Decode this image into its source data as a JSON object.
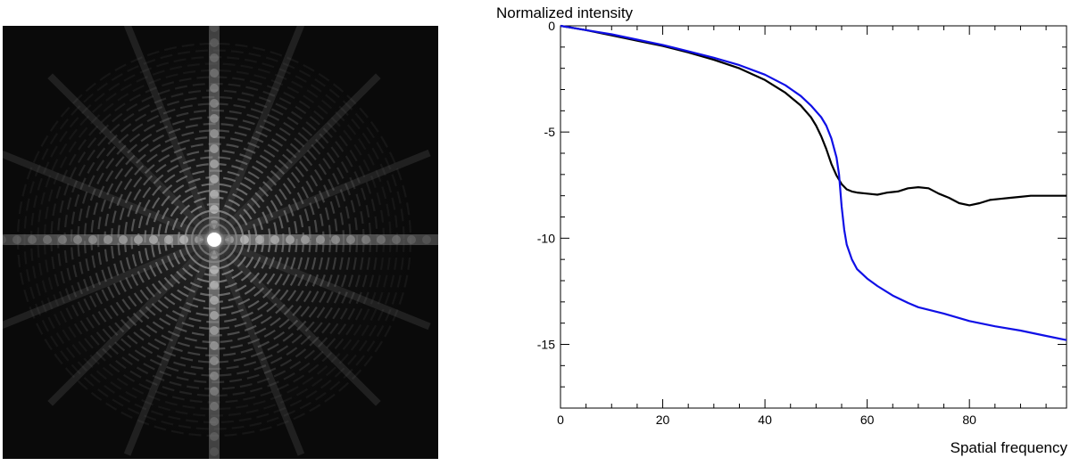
{
  "psf_image": {
    "description_icon": "diffraction-pattern-image",
    "background_color": "#0a0a0a",
    "core_color": "#ffffff"
  },
  "chart_data": {
    "type": "line",
    "xlabel": "Spatial frequency",
    "ylabel": "Normalized intensity",
    "xlim": [
      0,
      99
    ],
    "ylim": [
      -18,
      0
    ],
    "x_ticks": [
      0,
      20,
      40,
      60,
      80
    ],
    "y_ticks": [
      0,
      -5,
      -10,
      -15
    ],
    "grid": false,
    "series": [
      {
        "color": "#000000",
        "x": [
          0,
          5,
          10,
          15,
          20,
          25,
          30,
          35,
          40,
          44,
          47,
          49,
          50,
          51,
          52,
          53,
          54,
          55,
          56,
          57,
          58,
          60,
          62,
          64,
          66,
          68,
          70,
          72,
          74,
          76,
          78,
          80,
          82,
          84,
          86,
          88,
          90,
          92,
          94,
          96,
          99
        ],
        "y": [
          0,
          -0.2,
          -0.45,
          -0.7,
          -0.95,
          -1.25,
          -1.6,
          -2.0,
          -2.55,
          -3.15,
          -3.75,
          -4.3,
          -4.7,
          -5.2,
          -5.8,
          -6.5,
          -7.05,
          -7.45,
          -7.7,
          -7.8,
          -7.85,
          -7.9,
          -7.95,
          -7.85,
          -7.8,
          -7.65,
          -7.6,
          -7.65,
          -7.9,
          -8.1,
          -8.35,
          -8.45,
          -8.35,
          -8.2,
          -8.15,
          -8.1,
          -8.05,
          -8.0,
          -8.0,
          -8.0,
          -8.0
        ]
      },
      {
        "color": "#1010e6",
        "x": [
          0,
          5,
          10,
          15,
          20,
          25,
          30,
          35,
          40,
          44,
          47,
          49,
          51,
          52,
          53,
          54,
          54.5,
          55,
          55.5,
          56,
          57,
          58,
          60,
          62,
          65,
          68,
          70,
          75,
          80,
          85,
          90,
          95,
          99
        ],
        "y": [
          0,
          -0.2,
          -0.4,
          -0.65,
          -0.9,
          -1.2,
          -1.5,
          -1.85,
          -2.3,
          -2.8,
          -3.3,
          -3.75,
          -4.3,
          -4.7,
          -5.3,
          -6.2,
          -7.0,
          -8.5,
          -9.6,
          -10.3,
          -11.0,
          -11.45,
          -11.9,
          -12.25,
          -12.7,
          -13.05,
          -13.25,
          -13.55,
          -13.9,
          -14.15,
          -14.35,
          -14.6,
          -14.8
        ]
      }
    ]
  }
}
